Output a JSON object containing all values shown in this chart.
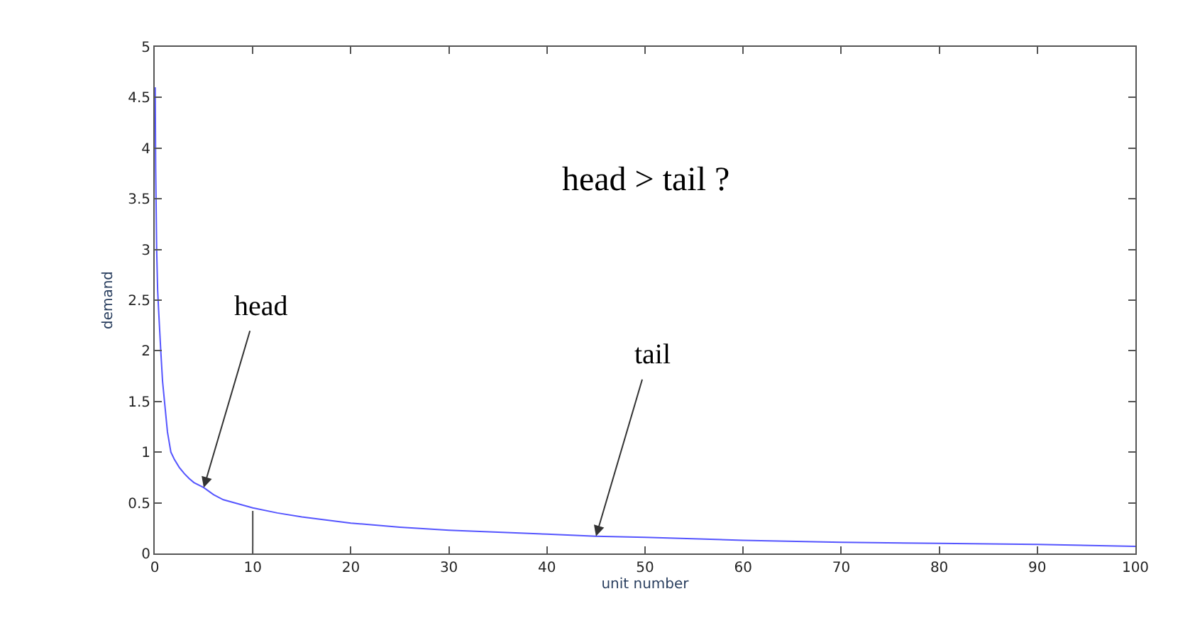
{
  "chart_data": {
    "type": "line",
    "xlabel": "unit number",
    "ylabel": "demand",
    "series": [
      {
        "color": "#5555ff",
        "x": [
          0.05,
          0.1,
          0.2,
          0.3,
          0.4,
          0.62,
          0.8,
          1,
          1.3,
          1.65,
          2,
          2.5,
          3,
          3.5,
          4,
          5,
          6,
          7,
          8.5,
          10,
          12.5,
          15,
          20,
          25,
          30,
          35,
          40,
          45,
          50,
          60,
          70,
          80,
          90,
          100
        ],
        "values": [
          4.6,
          3.8,
          3.0,
          2.6,
          2.4,
          2.0,
          1.7,
          1.5,
          1.2,
          1.0,
          0.93,
          0.85,
          0.79,
          0.74,
          0.7,
          0.65,
          0.58,
          0.53,
          0.49,
          0.45,
          0.4,
          0.36,
          0.3,
          0.26,
          0.23,
          0.21,
          0.19,
          0.17,
          0.16,
          0.13,
          0.11,
          0.1,
          0.09,
          0.07
        ]
      },
      {
        "color": "#444444",
        "x": [
          10,
          10
        ],
        "values": [
          0,
          0.42
        ]
      }
    ],
    "annotations": [
      "head > tail ?",
      {
        "text": "head",
        "x": 5,
        "y": 0.65
      },
      {
        "text": "tail",
        "x": 45,
        "y": 0.17
      }
    ],
    "xlim": [
      0,
      100
    ],
    "xticks": [
      0,
      10,
      20,
      30,
      40,
      50,
      60,
      70,
      80,
      90,
      100
    ],
    "ylim": [
      0,
      5
    ],
    "yticks": [
      0,
      0.5,
      1,
      1.5,
      2,
      2.5,
      3,
      3.5,
      4,
      4.5,
      5
    ]
  }
}
